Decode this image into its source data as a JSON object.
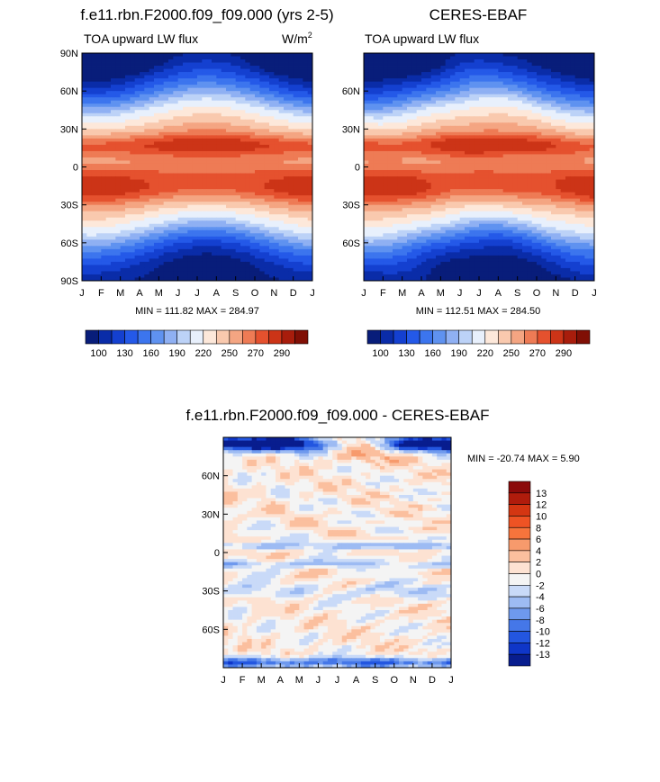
{
  "chart_data": [
    {
      "type": "heatmap",
      "id": "model",
      "title": "f.e11.rbn.F2000.f09_f09.000 (yrs 2-5)",
      "subtitle_left": "TOA upward LW flux",
      "units": "W/m",
      "units_sup": "2",
      "x_ticks": [
        "J",
        "F",
        "M",
        "A",
        "M",
        "J",
        "J",
        "A",
        "S",
        "O",
        "N",
        "D",
        "J"
      ],
      "y_ticks": [
        "90N",
        "60N",
        "30N",
        "0",
        "30S",
        "60S",
        "90S"
      ],
      "ylim": [
        -90,
        90
      ],
      "stats_text": "MIN = 111.82 MAX = 284.97",
      "min": 111.82,
      "max": 284.97,
      "colorbar_labels": [
        "100",
        "130",
        "160",
        "190",
        "220",
        "250",
        "270",
        "290"
      ]
    },
    {
      "type": "heatmap",
      "id": "obs",
      "title": "CERES-EBAF",
      "subtitle_left": "TOA upward LW flux",
      "x_ticks": [
        "J",
        "F",
        "M",
        "A",
        "M",
        "J",
        "J",
        "A",
        "S",
        "O",
        "N",
        "D",
        "J"
      ],
      "y_ticks": [
        "60N",
        "30N",
        "0",
        "30S",
        "60S"
      ],
      "ylim": [
        -90,
        90
      ],
      "stats_text": "MIN = 112.51 MAX = 284.50",
      "min": 112.51,
      "max": 284.5,
      "colorbar_labels": [
        "100",
        "130",
        "160",
        "190",
        "220",
        "250",
        "270",
        "290"
      ]
    },
    {
      "type": "heatmap",
      "id": "diff",
      "title": "f.e11.rbn.F2000.f09_f09.000 - CERES-EBAF",
      "x_ticks": [
        "J",
        "F",
        "M",
        "A",
        "M",
        "J",
        "J",
        "A",
        "S",
        "O",
        "N",
        "D",
        "J"
      ],
      "y_ticks": [
        "60N",
        "30N",
        "0",
        "30S",
        "60S"
      ],
      "ylim": [
        -90,
        90
      ],
      "stats_text": "MIN = -20.74 MAX =   5.90",
      "min": -20.74,
      "max": 5.9,
      "colorbar_labels": [
        "13",
        "12",
        "10",
        "8",
        "6",
        "4",
        "2",
        "0",
        "-2",
        "-4",
        "-6",
        "-8",
        "-10",
        "-12",
        "-13"
      ]
    }
  ],
  "palettes": {
    "flux": [
      "#081d7a",
      "#0a2ca8",
      "#1440d0",
      "#2459e8",
      "#3c75ee",
      "#5f92f0",
      "#8fb0f3",
      "#bcd2f7",
      "#e8f0fc",
      "#fde8da",
      "#f9c9ae",
      "#f4a582",
      "#ee7b55",
      "#e5512e",
      "#cc3417",
      "#a81d0c",
      "#800f05"
    ],
    "diff": [
      "#8b0a0a",
      "#b01c0c",
      "#d43612",
      "#ee5324",
      "#f6743c",
      "#f79a6c",
      "#fbbf9e",
      "#fde2d2",
      "#f4f4f4",
      "#c9daf8",
      "#9dbbf3",
      "#6e99ee",
      "#4577e8",
      "#2356e0",
      "#0f36c8",
      "#081d8e"
    ]
  }
}
